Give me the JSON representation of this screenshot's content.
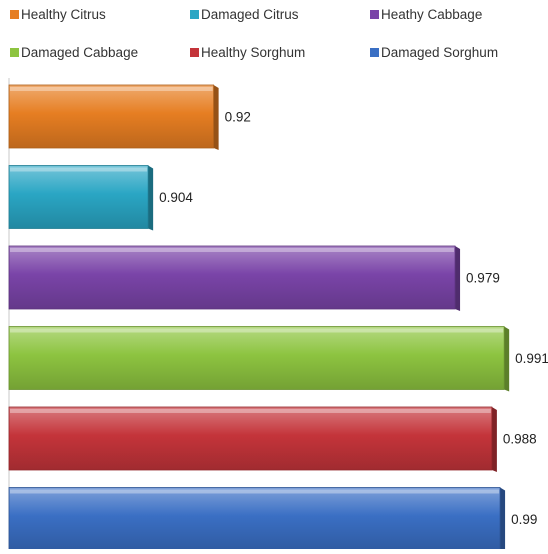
{
  "chart_data": {
    "type": "bar",
    "orientation": "horizontal",
    "title": "",
    "xlabel": "",
    "ylabel": "",
    "grid": false,
    "legend_position": "top",
    "xlim": [
      0.87,
      1.0
    ],
    "series": [
      {
        "name": "Healthy Citrus",
        "value": 0.92,
        "label": "0.92",
        "color": "#E67E22"
      },
      {
        "name": "Damaged Citrus",
        "value": 0.904,
        "label": "0.904",
        "color": "#2AA6C4"
      },
      {
        "name": "Heathy Cabbage",
        "value": 0.979,
        "label": "0.979",
        "color": "#7A44A8"
      },
      {
        "name": "Damaged Cabbage",
        "value": 0.991,
        "label": "0.991",
        "color": "#8DC440"
      },
      {
        "name": "Healthy Sorghum",
        "value": 0.988,
        "label": "0.988",
        "color": "#C4343A"
      },
      {
        "name": "Damaged Sorghum",
        "value": 0.99,
        "label": "0.99",
        "color": "#3A6FC4"
      }
    ]
  }
}
